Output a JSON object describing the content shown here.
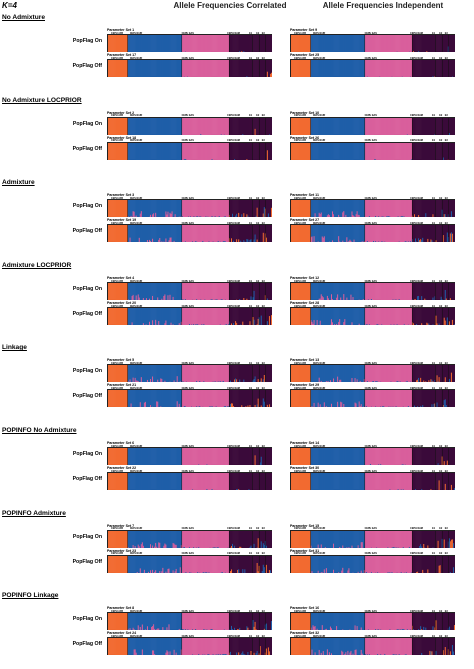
{
  "k_label": "K=4",
  "columns": [
    "Allele Frequencies Correlated",
    "Allele Frequencies Independent"
  ],
  "row_labels": [
    "PopFlag On",
    "PopFlag Off"
  ],
  "population_labels": [
    "CEPH AFR",
    "CEPH EUR",
    "CEPH EAS",
    "CEPH NAM",
    "E1",
    "E2",
    "E3"
  ],
  "colors": {
    "cluster_afr": "#f26a30",
    "cluster_eur": "#1f5ea8",
    "cluster_eas": "#d95f9c",
    "cluster_nam": "#3b0a3a",
    "divider": "#111111"
  },
  "sections": [
    {
      "title": "No Admixture",
      "sets": [
        [
          "Parameter Set 1",
          "Parameter Set 9"
        ],
        [
          "Parameter Set 17",
          "Parameter Set 25"
        ]
      ]
    },
    {
      "title": "No Admixture LOCPRIOR",
      "sets": [
        [
          "Parameter Set 2",
          "Parameter Set 10"
        ],
        [
          "Parameter Set 18",
          "Parameter Set 26"
        ]
      ]
    },
    {
      "title": "Admixture",
      "sets": [
        [
          "Parameter Set 3",
          "Parameter Set 11"
        ],
        [
          "Parameter Set 19",
          "Parameter Set 27"
        ]
      ]
    },
    {
      "title": "Admixture LOCPRIOR",
      "sets": [
        [
          "Parameter Set 4",
          "Parameter Set 12"
        ],
        [
          "Parameter Set 20",
          "Parameter Set 28"
        ]
      ]
    },
    {
      "title": "Linkage",
      "sets": [
        [
          "Parameter Set 5",
          "Parameter Set 13"
        ],
        [
          "Parameter Set 21",
          "Parameter Set 29"
        ]
      ]
    },
    {
      "title": "POPINFO No Admixture",
      "sets": [
        [
          "Parameter Set 6",
          "Parameter Set 14"
        ],
        [
          "Parameter Set 22",
          "Parameter Set 30"
        ]
      ]
    },
    {
      "title": "POPINFO Admixture",
      "sets": [
        [
          "Parameter Set 7",
          "Parameter Set 15"
        ],
        [
          "Parameter Set 23",
          "Parameter Set 31"
        ]
      ]
    },
    {
      "title": "POPINFO Linkage",
      "sets": [
        [
          "Parameter Set 8",
          "Parameter Set 16"
        ],
        [
          "Parameter Set 24",
          "Parameter Set 32"
        ]
      ]
    }
  ]
}
